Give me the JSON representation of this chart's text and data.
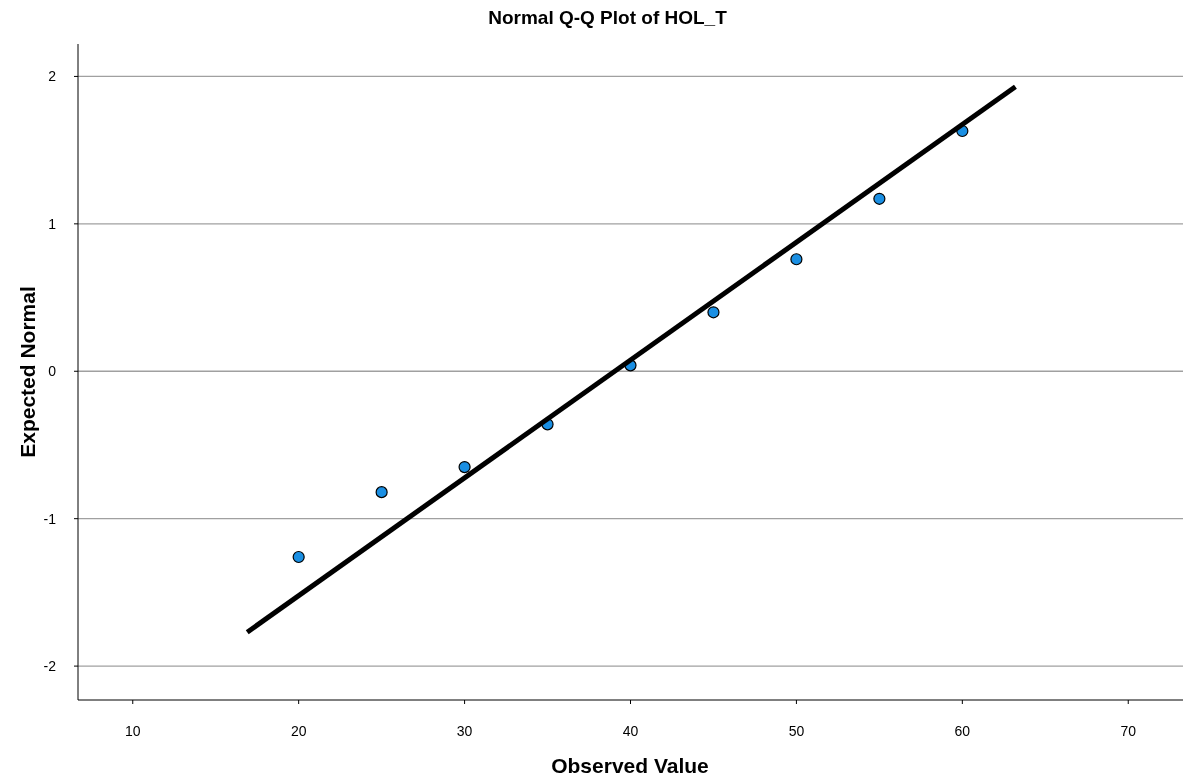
{
  "chart_data": {
    "type": "scatter",
    "title": "Normal Q-Q Plot of HOL_T",
    "xlabel": "Observed Value",
    "ylabel": "Expected Normal",
    "series": [
      {
        "color": "#1a8fe3",
        "x": [
          20,
          25,
          30,
          35,
          40,
          45,
          50,
          55,
          60
        ],
        "values": [
          -1.26,
          -0.82,
          -0.65,
          -0.36,
          0.04,
          0.4,
          0.76,
          1.17,
          1.63
        ]
      },
      {
        "type": "line",
        "marker": "none",
        "color": "#000000",
        "x": [
          16.9,
          63.2
        ],
        "values": [
          -1.77,
          1.93
        ]
      }
    ],
    "xlim": [
      6.7,
      73.3
    ],
    "ylim": [
      -2.23,
      2.22
    ],
    "xticks": [
      10,
      20,
      30,
      40,
      50,
      60,
      70
    ],
    "yticks": [
      -2,
      -1,
      0,
      1,
      2
    ],
    "grid": "y",
    "marker": "circle"
  }
}
